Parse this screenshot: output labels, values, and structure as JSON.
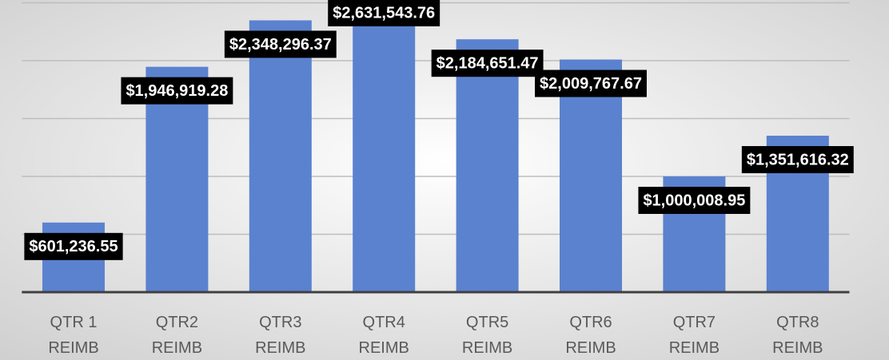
{
  "chart_data": {
    "type": "bar",
    "categories": [
      "QTR 1 REIMB",
      "QTR2 REIMB",
      "QTR3 REIMB",
      "QTR4 REIMB",
      "QTR5 REIMB",
      "QTR6 REIMB",
      "QTR7 REIMB",
      "QTR8 REIMB"
    ],
    "values": [
      601236.55,
      1946919.28,
      2348296.37,
      2631543.76,
      2184651.47,
      2009767.67,
      1000008.95,
      1351616.32
    ],
    "value_labels": [
      "$601,236.55",
      "$1,946,919.28",
      "$2,348,296.37",
      "$2,631,543.76",
      "$2,184,651.47",
      "$2,009,767.67",
      "$1,000,008.95",
      "$1,351,616.32"
    ],
    "color": "#5b82cf",
    "ylim": [
      0,
      2524000
    ],
    "yticks": [
      0,
      500000,
      1000000,
      1500000,
      2000000,
      2500000
    ],
    "grid": true
  }
}
